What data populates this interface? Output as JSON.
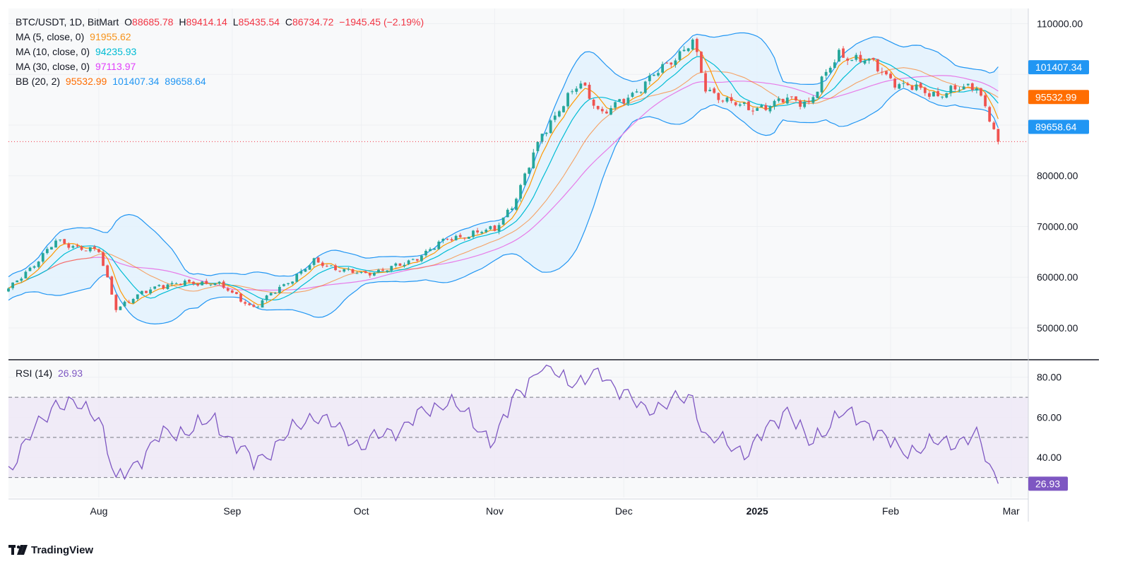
{
  "header": {
    "symbol": "BTC/USDT, 1D, BitMart",
    "ohlc": {
      "o_label": "O",
      "o": "88685.78",
      "h_label": "H",
      "h": "89414.14",
      "l_label": "L",
      "l": "85435.54",
      "c_label": "C",
      "c": "86734.72",
      "change": "−1945.45 (−2.19%)"
    },
    "studies": [
      {
        "label": "MA (5, close, 0)",
        "value": "91955.62",
        "color": "#f7931a"
      },
      {
        "label": "MA (10, close, 0)",
        "value": "94235.93",
        "color": "#00bcd4"
      },
      {
        "label": "MA (30, close, 0)",
        "value": "97113.97",
        "color": "#e040fb"
      }
    ],
    "bb": {
      "label": "BB (20, 2)",
      "basis": "95532.99",
      "upper": "101407.34",
      "lower": "89658.64"
    },
    "rsi": {
      "label": "RSI (14)",
      "value": "26.93"
    }
  },
  "colors": {
    "up": "#26a69a",
    "down": "#ef5350",
    "ma5": "#ff9800",
    "ma10": "#00bcd4",
    "ma30": "#e77be8",
    "bb_band": "#2196f3",
    "bb_fill": "#e3f2fd",
    "rsi_line": "#7e57c2",
    "rsi_fill": "#ede7f6",
    "price_label_red": "#f23645"
  },
  "brand": "TradingView",
  "chart_data": [
    {
      "type": "candlestick",
      "title": "BTC/USDT, 1D, BitMart",
      "x": [
        "2024-07-11",
        "2024-07-22",
        "2024-08-01",
        "2024-08-05",
        "2024-08-15",
        "2024-08-28",
        "2024-09-06",
        "2024-09-20",
        "2024-10-01",
        "2024-10-11",
        "2024-10-21",
        "2024-11-01",
        "2024-11-06",
        "2024-11-12",
        "2024-11-21",
        "2024-11-26",
        "2024-12-05",
        "2024-12-17",
        "2024-12-20",
        "2024-12-30",
        "2025-01-08",
        "2025-01-13",
        "2025-01-20",
        "2025-01-27",
        "2025-02-03",
        "2025-02-12",
        "2025-02-21",
        "2025-02-26"
      ],
      "close": [
        57500,
        67000,
        65000,
        54000,
        58500,
        59000,
        54000,
        63000,
        60500,
        62500,
        67500,
        69500,
        75500,
        88500,
        98500,
        92000,
        97500,
        106500,
        97000,
        93000,
        95000,
        94500,
        104000,
        102500,
        98000,
        96000,
        98000,
        86734.72
      ],
      "xlim": [
        "2024-07-11",
        "2025-03-05"
      ],
      "ylim": [
        44000,
        113000
      ],
      "x_tick_labels": [
        "Aug",
        "Sep",
        "Oct",
        "Nov",
        "Dec",
        "2025",
        "Feb",
        "Mar"
      ],
      "y_tick_labels": [
        "50000.00",
        "60000.00",
        "70000.00",
        "80000.00",
        "110000.00"
      ],
      "series": [
        {
          "name": "MA (5, close, 0)",
          "last": 91955.62
        },
        {
          "name": "MA (10, close, 0)",
          "last": 94235.93
        },
        {
          "name": "MA (30, close, 0)",
          "last": 97113.97
        },
        {
          "name": "BB (20, 2)",
          "basis_last": 95532.99,
          "upper_last": 101407.34,
          "lower_last": 89658.64
        }
      ],
      "price_labels": [
        "101407.34",
        "95532.99",
        "89658.64"
      ]
    },
    {
      "type": "line",
      "title": "RSI (14)",
      "x": [
        "2024-07-11",
        "2024-07-22",
        "2024-08-01",
        "2024-08-05",
        "2024-08-15",
        "2024-08-28",
        "2024-09-06",
        "2024-09-20",
        "2024-10-01",
        "2024-10-11",
        "2024-10-21",
        "2024-11-01",
        "2024-11-06",
        "2024-11-12",
        "2024-11-21",
        "2024-11-26",
        "2024-12-05",
        "2024-12-17",
        "2024-12-20",
        "2024-12-30",
        "2025-01-08",
        "2025-01-13",
        "2025-01-20",
        "2025-01-27",
        "2025-02-03",
        "2025-02-12",
        "2025-02-21",
        "2025-02-26"
      ],
      "y": [
        35,
        68,
        62,
        27,
        50,
        58,
        37,
        62,
        46,
        56,
        69,
        48,
        72,
        85,
        77,
        82,
        64,
        70,
        50,
        43,
        65,
        46,
        62,
        57,
        43,
        47,
        50,
        26.93
      ],
      "ylim": [
        20,
        88
      ],
      "levels": [
        70,
        50,
        30
      ],
      "y_tick_labels": [
        "80.00",
        "60.00",
        "40.00"
      ],
      "last_label": "26.93"
    }
  ]
}
